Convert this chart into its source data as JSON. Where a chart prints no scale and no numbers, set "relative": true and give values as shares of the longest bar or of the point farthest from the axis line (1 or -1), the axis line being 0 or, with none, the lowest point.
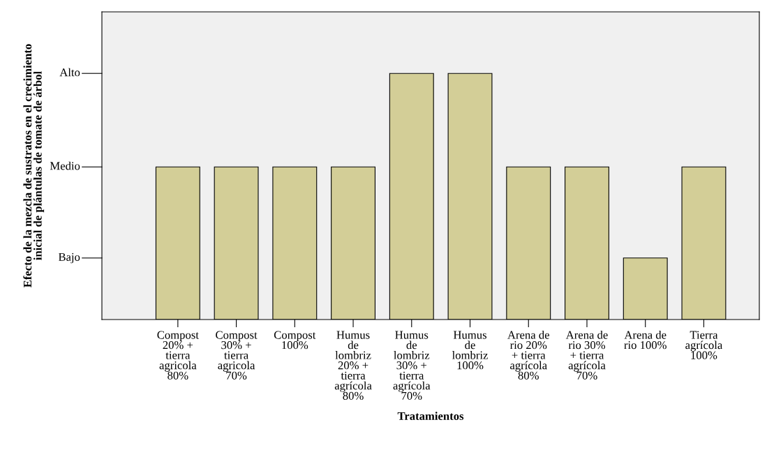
{
  "chart_data": {
    "type": "bar",
    "categories": [
      "Compost\n20% +\ntierra\nagricola\n80%",
      "Compost\n30% +\ntierra\nagricola\n70%",
      "Compost\n100%",
      "Humus\nde\nlombriz\n20% +\ntierra\nagrícola\n80%",
      "Humus\nde\nlombriz\n30% +\ntierra\nagrícola\n70%",
      "Humus\nde\nlombriz\n100%",
      "Arena de\nrio 20%\n+ tierra\nagrícola\n80%",
      "Arena de\nrio 30%\n+ tierra\nagrícola\n70%",
      "Arena de\nrio 100%",
      "Tierra\nagrícola\n100%"
    ],
    "values": [
      0.62,
      0.62,
      0.62,
      0.62,
      1,
      1,
      0.62,
      0.62,
      0.25,
      0.62
    ],
    "relative": true,
    "color": "#d3ce97",
    "xlabel": "Tratamientos",
    "ylabel": "Efecto de la mezcla de sustratos en el crecimiento\ninicial de plántulas de tomate de árbol",
    "annotations": [
      "Bajo",
      "Medio",
      "Alto"
    ],
    "grid": false
  }
}
